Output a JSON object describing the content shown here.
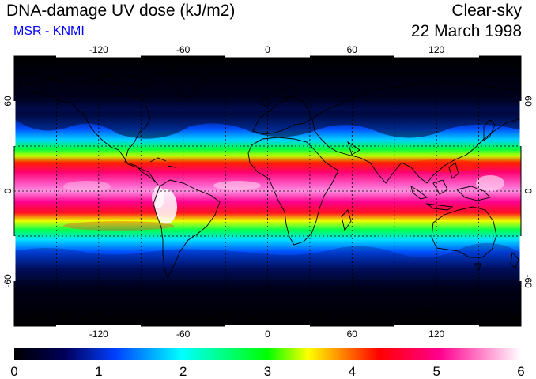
{
  "title": "DNA-damage UV dose (kJ/m2)",
  "source": "MSR - KNMI",
  "condition": "Clear-sky",
  "date": "22 March 1998",
  "map": {
    "lon_ticks": [
      -120,
      -60,
      0,
      60,
      120
    ],
    "lat_ticks": [
      60,
      0,
      -60
    ],
    "lon_range": [
      -180,
      180
    ],
    "lat_range": [
      -90,
      90
    ],
    "grid_lon": [
      -150,
      -120,
      -90,
      -60,
      -30,
      0,
      30,
      60,
      90,
      120,
      150
    ],
    "grid_lat": [
      -60,
      -30,
      0,
      30,
      60
    ]
  },
  "colorbar": {
    "min": 0,
    "max": 6,
    "tick_labels": [
      "0",
      "1",
      "2",
      "3",
      "4",
      "5",
      "6"
    ],
    "stops": [
      "#000000",
      "#00005a",
      "#0040ff",
      "#00ffff",
      "#00ff00",
      "#ffff00",
      "#ff0000",
      "#ff0090",
      "#ffffff"
    ]
  },
  "colors": {
    "subtitle": "#0000ff",
    "map_background": "#00000a"
  }
}
